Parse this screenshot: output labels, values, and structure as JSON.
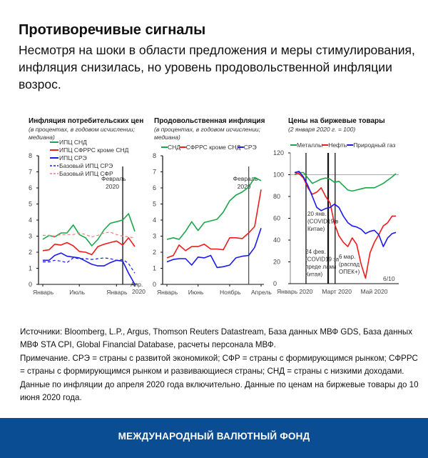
{
  "header": {
    "title": "Противоречивые сигналы",
    "subtitle": "Несмотря на шоки в области предложения и меры стимулирования, инфляция снизилась, но уровень продовольственной инфляции возрос."
  },
  "chart_data": [
    {
      "type": "line",
      "title": "Инфляция потребительских цен",
      "subtitle": "(в процентах, в годовом исчислении; медиана)",
      "x": [
        "2019-01",
        "2019-02",
        "2019-03",
        "2019-04",
        "2019-05",
        "2019-06",
        "2019-07",
        "2019-08",
        "2019-09",
        "2019-10",
        "2019-11",
        "2019-12",
        "2020-01",
        "2020-02",
        "2020-03",
        "2020-04"
      ],
      "xtick_labels": [
        {
          "x": "2019-01",
          "label": "Январь"
        },
        {
          "x": "2019-07",
          "label": "Июль"
        },
        {
          "x": "2020-01",
          "label": "Январь"
        },
        {
          "x": "2020-04",
          "label": "Апр. 2020"
        }
      ],
      "ylim": [
        0,
        8
      ],
      "yticks": [
        0,
        1,
        2,
        3,
        4,
        5,
        6,
        7,
        8
      ],
      "legend": "top-left",
      "annotations": [
        {
          "x": "2020-02",
          "label": "Февраль 2020"
        }
      ],
      "series": [
        {
          "name": "ИПЦ СНД",
          "color": "#1aa64a",
          "dash": false,
          "values": [
            2.8,
            3.05,
            2.95,
            3.2,
            3.2,
            3.7,
            3.1,
            2.9,
            2.4,
            2.8,
            3.4,
            3.8,
            3.9,
            4.0,
            4.4,
            3.3
          ]
        },
        {
          "name": "ИПЦ СФРРС кроме СНД",
          "color": "#ee1c1c",
          "dash": false,
          "values": [
            2.1,
            2.15,
            2.5,
            2.45,
            2.6,
            2.4,
            2.05,
            2.0,
            1.85,
            2.35,
            2.5,
            2.6,
            2.7,
            2.45,
            2.9,
            2.35
          ]
        },
        {
          "name": "ИПЦ СРЭ",
          "color": "#1a1aee",
          "dash": false,
          "values": [
            1.5,
            1.5,
            1.8,
            1.95,
            1.75,
            1.7,
            1.65,
            1.45,
            1.25,
            1.15,
            1.15,
            1.35,
            1.5,
            1.45,
            0.7,
            0.0
          ]
        },
        {
          "name": "Базовый ИПЦ СРЭ",
          "color": "#1a1aee",
          "dash": true,
          "values": [
            1.4,
            1.4,
            1.5,
            1.45,
            1.35,
            1.65,
            1.6,
            1.6,
            1.55,
            1.6,
            1.65,
            1.6,
            1.5,
            1.55,
            1.3,
            0.7
          ]
        },
        {
          "name": "Базовый ИПЦ СФР",
          "color": "#f27c7c",
          "dash": true,
          "values": [
            3.05,
            3.05,
            3.0,
            3.1,
            3.1,
            3.1,
            3.2,
            3.1,
            2.95,
            3.05,
            3.2,
            3.25,
            3.1,
            3.0,
            2.95,
            2.9
          ]
        }
      ]
    },
    {
      "type": "line",
      "title": "Продовольственная инфляция",
      "subtitle": "(в процентах, в годовом исчислении; медиана)",
      "x": [
        "2019-01",
        "2019-02",
        "2019-03",
        "2019-04",
        "2019-05",
        "2019-06",
        "2019-07",
        "2019-08",
        "2019-09",
        "2019-10",
        "2019-11",
        "2019-12",
        "2020-01",
        "2020-02",
        "2020-03",
        "2020-04"
      ],
      "xtick_labels": [
        {
          "x": "2019-01",
          "label": "Январь"
        },
        {
          "x": "2019-06",
          "label": "Июнь"
        },
        {
          "x": "2019-11",
          "label": "Ноябрь"
        },
        {
          "x": "2020-04",
          "label": "Апрель"
        }
      ],
      "ylim": [
        0,
        8
      ],
      "yticks": [
        0,
        1,
        2,
        3,
        4,
        5,
        6,
        7,
        8
      ],
      "legend": "top",
      "annotations": [
        {
          "x": "2020-02",
          "label": "Февраль 2020"
        }
      ],
      "series": [
        {
          "name": "СНД",
          "color": "#1aa64a",
          "values": [
            2.8,
            2.9,
            2.8,
            3.3,
            3.9,
            3.35,
            3.85,
            3.95,
            4.05,
            4.5,
            5.2,
            5.55,
            5.75,
            6.05,
            6.65,
            6.45
          ]
        },
        {
          "name": "СФРРС кроме СНД",
          "color": "#ee1c1c",
          "values": [
            1.65,
            1.8,
            2.45,
            2.1,
            2.35,
            2.35,
            2.5,
            2.2,
            2.2,
            2.15,
            2.9,
            2.9,
            2.85,
            3.2,
            3.6,
            5.9
          ]
        },
        {
          "name": "СРЭ",
          "color": "#1a1aee",
          "values": [
            1.4,
            1.55,
            1.6,
            1.6,
            1.2,
            1.7,
            1.65,
            1.8,
            1.05,
            1.1,
            1.2,
            1.65,
            1.75,
            1.8,
            2.3,
            3.5
          ]
        }
      ]
    },
    {
      "type": "line",
      "title": "Цены на биржевые товары",
      "subtitle": "(2 января 2020 г. = 100)",
      "x": [
        "2020-01-02",
        "2020-01-09",
        "2020-01-16",
        "2020-01-23",
        "2020-01-30",
        "2020-02-06",
        "2020-02-13",
        "2020-02-20",
        "2020-02-27",
        "2020-03-05",
        "2020-03-12",
        "2020-03-19",
        "2020-03-26",
        "2020-04-02",
        "2020-04-09",
        "2020-04-16",
        "2020-04-23",
        "2020-04-30",
        "2020-05-07",
        "2020-05-14",
        "2020-05-21",
        "2020-05-28",
        "2020-06-04",
        "2020-06-10"
      ],
      "xtick_labels": [
        {
          "x": "2020-01-02",
          "label": "Январь 2020"
        },
        {
          "x": "2020-03-01",
          "label": "Март 2020"
        },
        {
          "x": "2020-05-01",
          "label": "Май 2020"
        },
        {
          "x": "2020-06-10",
          "label": "6/10"
        }
      ],
      "ylim": [
        0,
        120
      ],
      "yticks": [
        0,
        20,
        40,
        60,
        80,
        100,
        120
      ],
      "reference_line": 100,
      "legend": "top",
      "annotations": [
        {
          "x": "2020-01-20",
          "label": "20 янв. (COVID19 в Китае)"
        },
        {
          "x": "2020-02-24",
          "label": "24 фев. (COVID19 за преде лами Китая)"
        },
        {
          "x": "2020-03-06",
          "label": "6 мар. (распад ОПЕК+)"
        }
      ],
      "series": [
        {
          "name": "Металлы",
          "color": "#1aa64a",
          "values": [
            100,
            102,
            102,
            97,
            92,
            94,
            96,
            97,
            96,
            93,
            94,
            90,
            86,
            85,
            86,
            87,
            88,
            88,
            88,
            90,
            92,
            95,
            98,
            101
          ]
        },
        {
          "name": "Нефть",
          "color": "#ee1c1c",
          "values": [
            102,
            101,
            97,
            88,
            82,
            84,
            88,
            80,
            74,
            55,
            44,
            38,
            34,
            42,
            36,
            18,
            5,
            28,
            38,
            45,
            53,
            56,
            62,
            62
          ]
        },
        {
          "name": "Природный газ",
          "color": "#1a1aee",
          "values": [
            102,
            103,
            98,
            90,
            80,
            70,
            67,
            69,
            70,
            73,
            70,
            62,
            56,
            53,
            52,
            50,
            46,
            48,
            49,
            45,
            34,
            42,
            46,
            47
          ]
        }
      ]
    }
  ],
  "notes": {
    "sources": "Источники: Bloomberg, L.P., Argus, Thomson Reuters Datastream, База данных МВФ GDS, База данных МВФ STA CPI, Global Financial Database, расчеты персонала МВФ.",
    "note": "Примечание. СРЭ = страны с развитой экономикой; СФР = страны с формирующимся рынком; СФРРС = страны с формирующимся рынком и развивающиеся страны; СНД = страны с низкими доходами. Данные по инфляции до апреля 2020 года включительно. Данные по ценам на биржевые товары до 10 июня 2020 года."
  },
  "footer": {
    "label": "МЕЖДУНАРОДНЫЙ ВАЛЮТНЫЙ ФОНД",
    "color": "#0b4d92"
  }
}
